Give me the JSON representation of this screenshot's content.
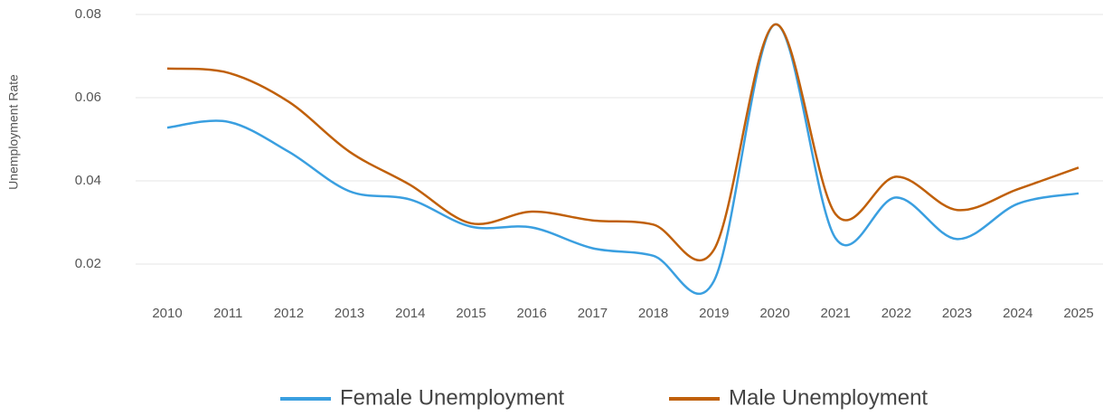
{
  "chart_data": {
    "type": "line",
    "y_label": "Unemployment Rate",
    "categories": [
      "2010",
      "2011",
      "2012",
      "2013",
      "2014",
      "2015",
      "2016",
      "2017",
      "2018",
      "2019",
      "2020",
      "2021",
      "2022",
      "2023",
      "2024",
      "2025"
    ],
    "series": [
      {
        "name": "Female Unemployment",
        "color": "#3a9fe0",
        "values": [
          0.0528,
          0.0542,
          0.047,
          0.0375,
          0.0355,
          0.029,
          0.0288,
          0.0238,
          0.022,
          0.016,
          0.0776,
          0.0262,
          0.036,
          0.026,
          0.0345,
          0.037
        ]
      },
      {
        "name": "Male Unemployment",
        "color": "#c0600a",
        "values": [
          0.067,
          0.066,
          0.059,
          0.047,
          0.039,
          0.0298,
          0.0326,
          0.0305,
          0.0295,
          0.0235,
          0.0776,
          0.032,
          0.041,
          0.033,
          0.038,
          0.0432
        ]
      }
    ],
    "ylim": [
      0.014,
      0.08
    ],
    "yticks": [
      0.02,
      0.04,
      0.06,
      0.08
    ],
    "grid": true,
    "legend": "bottom"
  }
}
